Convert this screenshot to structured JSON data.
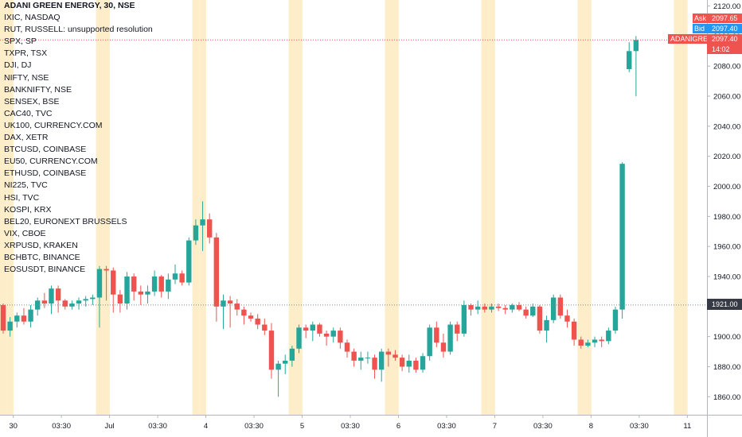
{
  "header": {
    "legend": [
      "ADANI GREEN ENERGY, 30, NSE",
      "IXIC, NASDAQ",
      "RUT, RUSSELL: unsupported resolution",
      "SPX, SP",
      "TXPR, TSX",
      "DJI, DJ",
      "NIFTY, NSE",
      "BANKNIFTY, NSE",
      "SENSEX, BSE",
      "CAC40, TVC",
      "UK100, CURRENCY.COM",
      "DAX, XETR",
      "BTCUSD, COINBASE",
      "EU50, CURRENCY.COM",
      "ETHUSD, COINBASE",
      "NI225, TVC",
      "HSI, TVC",
      "KOSPI, KRX",
      "BEL20, EURONEXT BRUSSELS",
      "VIX, CBOE",
      "XRPUSD, KRAKEN",
      "BCHBTC, BINANCE",
      "EOSUSDT, BINANCE"
    ]
  },
  "quotes": {
    "ask_label": "Ask",
    "ask_value": "2097.65",
    "bid_label": "Bid",
    "bid_value": "2097.40",
    "symbol_label": "ADANIGREEN",
    "last_value": "2097.40",
    "countdown": "14:02",
    "crosshair_value": "1921.00"
  },
  "colors": {
    "up": "#26a69a",
    "down": "#ef5350",
    "session": "#fdeec9",
    "grid": "#f0f3fa",
    "axis_text": "#131722",
    "ask_bg": "#ef5350",
    "bid_bg": "#2196f3",
    "crosshair_bg": "#363a45"
  },
  "chart_data": {
    "type": "candlestick",
    "title": "ADANI GREEN ENERGY, 30, NSE",
    "y_axis": {
      "position": "right",
      "ticks": [
        1860,
        1880,
        1900,
        1920,
        1940,
        1960,
        1980,
        2000,
        2020,
        2040,
        2060,
        2080,
        2100,
        2120
      ],
      "tick_labels": [
        "1860.00",
        "1880.00",
        "1900.00",
        "1920.00",
        "1940.00",
        "1960.00",
        "1980.00",
        "2000.00",
        "2020.00",
        "2040.00",
        "2060.00",
        "2080.00",
        "2100.00",
        "2120.00"
      ],
      "range": [
        1848,
        2124
      ]
    },
    "x_axis": {
      "tick_labels": [
        {
          "label": "30",
          "bar": 1.5
        },
        {
          "label": "03:30",
          "bar": 8.5
        },
        {
          "label": "Jul",
          "bar": 15.5
        },
        {
          "label": "03:30",
          "bar": 22.5
        },
        {
          "label": "4",
          "bar": 29.5
        },
        {
          "label": "03:30",
          "bar": 36.5
        },
        {
          "label": "5",
          "bar": 43.5
        },
        {
          "label": "03:30",
          "bar": 50.5
        },
        {
          "label": "6",
          "bar": 57.5
        },
        {
          "label": "03:30",
          "bar": 64.5
        },
        {
          "label": "7",
          "bar": 71.5
        },
        {
          "label": "03:30",
          "bar": 78.5
        },
        {
          "label": "8",
          "bar": 85.5
        },
        {
          "label": "03:30",
          "bar": 92.5
        },
        {
          "label": "11",
          "bar": 99.5
        }
      ]
    },
    "session_bars": [
      0,
      1,
      14,
      15,
      28,
      29,
      42,
      43,
      56,
      57,
      70,
      71,
      84,
      85,
      98,
      99
    ],
    "last_price": 2097.4,
    "crosshair_price": 1921.0,
    "candles": [
      [
        1921,
        1922,
        1902,
        1904
      ],
      [
        1904,
        1913,
        1900,
        1910
      ],
      [
        1910,
        1916,
        1906,
        1914
      ],
      [
        1914,
        1919,
        1908,
        1910
      ],
      [
        1910,
        1921,
        1906,
        1918
      ],
      [
        1918,
        1926,
        1914,
        1924
      ],
      [
        1924,
        1929,
        1919,
        1922
      ],
      [
        1922,
        1934,
        1915,
        1932
      ],
      [
        1932,
        1934,
        1916,
        1924
      ],
      [
        1924,
        1925,
        1918,
        1920
      ],
      [
        1920,
        1924,
        1918,
        1922
      ],
      [
        1922,
        1926,
        1918,
        1924
      ],
      [
        1924,
        1927,
        1920,
        1925
      ],
      [
        1925,
        1928,
        1921,
        1926
      ],
      [
        1926,
        1947,
        1906,
        1945
      ],
      [
        1945,
        1947,
        1924,
        1944
      ],
      [
        1944,
        1946,
        1916,
        1928
      ],
      [
        1928,
        1931,
        1916,
        1922
      ],
      [
        1922,
        1943,
        1918,
        1940
      ],
      [
        1940,
        1942,
        1924,
        1930
      ],
      [
        1930,
        1934,
        1921,
        1928
      ],
      [
        1928,
        1934,
        1922,
        1930
      ],
      [
        1930,
        1944,
        1927,
        1940
      ],
      [
        1940,
        1941,
        1926,
        1930
      ],
      [
        1930,
        1942,
        1925,
        1938
      ],
      [
        1938,
        1948,
        1935,
        1942
      ],
      [
        1942,
        1944,
        1934,
        1936
      ],
      [
        1936,
        1966,
        1934,
        1964
      ],
      [
        1964,
        1978,
        1961,
        1974
      ],
      [
        1974,
        1990,
        1957,
        1978
      ],
      [
        1978,
        1982,
        1962,
        1966
      ],
      [
        1966,
        1969,
        1910,
        1920
      ],
      [
        1920,
        1928,
        1905,
        1924
      ],
      [
        1924,
        1927,
        1906,
        1922
      ],
      [
        1922,
        1925,
        1914,
        1918
      ],
      [
        1918,
        1920,
        1908,
        1914
      ],
      [
        1914,
        1916,
        1910,
        1912
      ],
      [
        1912,
        1915,
        1905,
        1908
      ],
      [
        1908,
        1912,
        1901,
        1904
      ],
      [
        1904,
        1909,
        1872,
        1878
      ],
      [
        1878,
        1884,
        1860,
        1882
      ],
      [
        1882,
        1888,
        1875,
        1884
      ],
      [
        1884,
        1894,
        1880,
        1892
      ],
      [
        1892,
        1908,
        1889,
        1906
      ],
      [
        1906,
        1908,
        1899,
        1904
      ],
      [
        1904,
        1910,
        1897,
        1908
      ],
      [
        1908,
        1909,
        1900,
        1902
      ],
      [
        1902,
        1904,
        1894,
        1900
      ],
      [
        1900,
        1906,
        1896,
        1904
      ],
      [
        1904,
        1906,
        1892,
        1896
      ],
      [
        1896,
        1898,
        1886,
        1890
      ],
      [
        1890,
        1892,
        1880,
        1884
      ],
      [
        1884,
        1890,
        1878,
        1886
      ],
      [
        1886,
        1890,
        1882,
        1886
      ],
      [
        1886,
        1888,
        1872,
        1878
      ],
      [
        1878,
        1892,
        1870,
        1890
      ],
      [
        1890,
        1892,
        1880,
        1888
      ],
      [
        1888,
        1891,
        1884,
        1886
      ],
      [
        1886,
        1888,
        1877,
        1880
      ],
      [
        1880,
        1888,
        1876,
        1884
      ],
      [
        1884,
        1886,
        1876,
        1878
      ],
      [
        1878,
        1889,
        1876,
        1887
      ],
      [
        1887,
        1908,
        1884,
        1906
      ],
      [
        1906,
        1910,
        1893,
        1896
      ],
      [
        1896,
        1902,
        1886,
        1890
      ],
      [
        1890,
        1910,
        1888,
        1908
      ],
      [
        1908,
        1910,
        1897,
        1902
      ],
      [
        1902,
        1924,
        1900,
        1921
      ],
      [
        1921,
        1922,
        1914,
        1918
      ],
      [
        1918,
        1924,
        1915,
        1920
      ],
      [
        1920,
        1922,
        1916,
        1918
      ],
      [
        1918,
        1922,
        1916,
        1920
      ],
      [
        1920,
        1922,
        1917,
        1919
      ],
      [
        1919,
        1921,
        1915,
        1918
      ],
      [
        1918,
        1922,
        1916,
        1921
      ],
      [
        1921,
        1923,
        1917,
        1918
      ],
      [
        1918,
        1920,
        1912,
        1914
      ],
      [
        1914,
        1922,
        1913,
        1920
      ],
      [
        1920,
        1921,
        1902,
        1904
      ],
      [
        1904,
        1914,
        1896,
        1911
      ],
      [
        1911,
        1928,
        1909,
        1926
      ],
      [
        1926,
        1928,
        1912,
        1914
      ],
      [
        1914,
        1918,
        1906,
        1910
      ],
      [
        1910,
        1912,
        1894,
        1898
      ],
      [
        1898,
        1900,
        1892,
        1894
      ],
      [
        1894,
        1898,
        1893,
        1896
      ],
      [
        1896,
        1900,
        1893,
        1898
      ],
      [
        1898,
        1900,
        1893,
        1897
      ],
      [
        1897,
        1906,
        1895,
        1904
      ],
      [
        1904,
        1920,
        1902,
        1918
      ],
      [
        1918,
        2016,
        1912,
        2015
      ],
      [
        2078,
        2096,
        2076,
        2090
      ],
      [
        2090,
        2100,
        2060,
        2097.4
      ]
    ]
  }
}
